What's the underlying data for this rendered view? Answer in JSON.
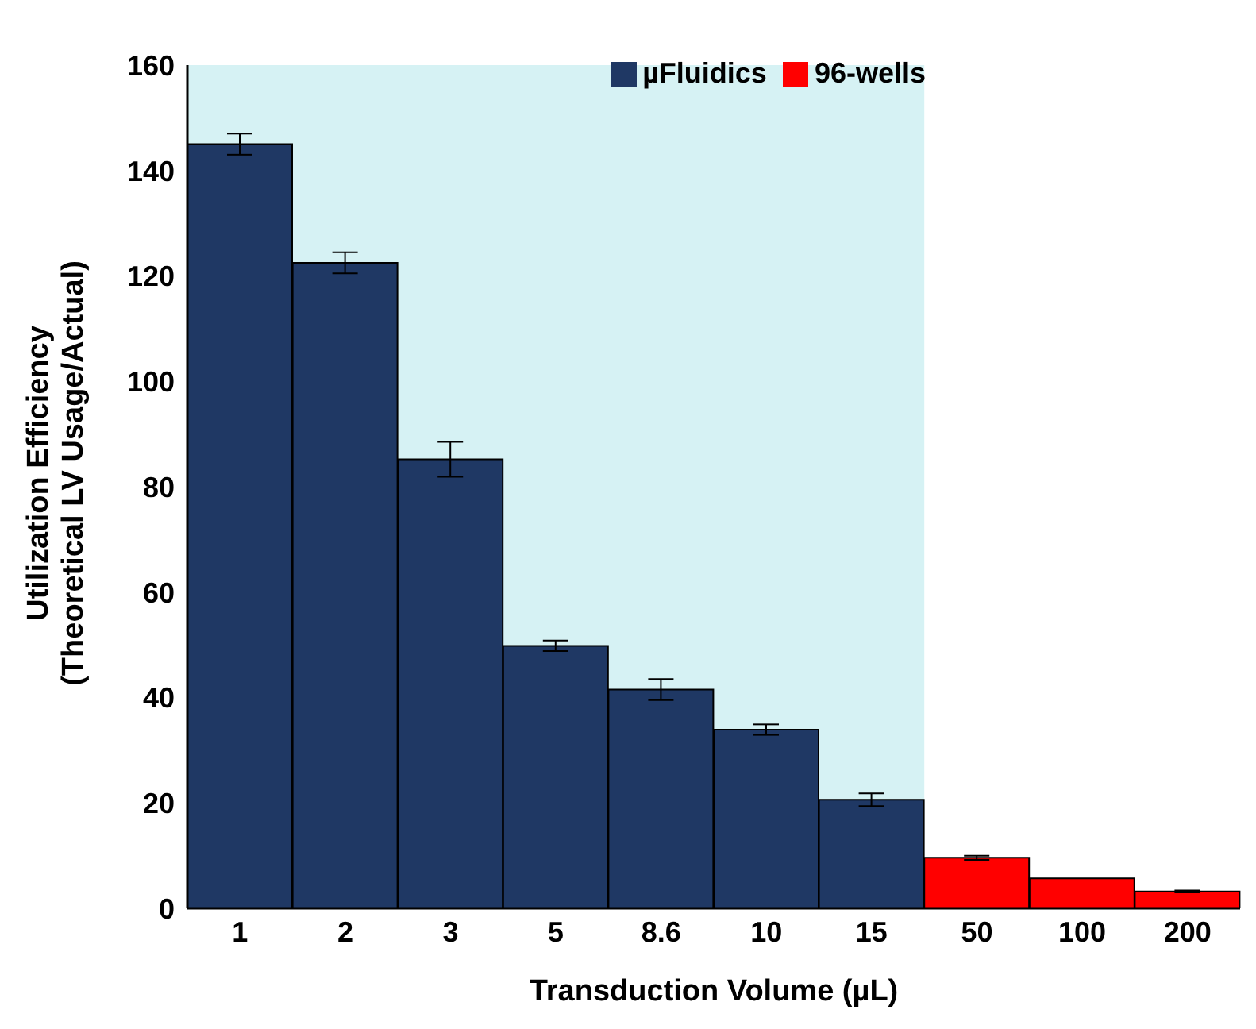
{
  "chart_data": {
    "type": "bar",
    "xlabel": "Transduction Volume (µL)",
    "ylabel": "Utilization Efficiency\n(Theoretical LV Usage/Actual)",
    "categories": [
      "1",
      "2",
      "3",
      "5",
      "8.6",
      "10",
      "15",
      "50",
      "100",
      "200"
    ],
    "series": [
      {
        "name": "µFluidics",
        "color": "#1f3864",
        "values": [
          145,
          122.5,
          85.2,
          49.8,
          41.5,
          33.9,
          20.6,
          null,
          null,
          null
        ],
        "errors": [
          2,
          2,
          3.3,
          1,
          2,
          1,
          1.2,
          null,
          null,
          null
        ]
      },
      {
        "name": "96-wells",
        "color": "#ff0000",
        "values": [
          null,
          null,
          null,
          null,
          null,
          null,
          null,
          9.6,
          5.7,
          3.2
        ],
        "errors": [
          null,
          null,
          null,
          null,
          null,
          null,
          null,
          0.4,
          null,
          0.2
        ]
      }
    ],
    "ylim": [
      0,
      160
    ],
    "yticks": [
      0,
      20,
      40,
      60,
      80,
      100,
      120,
      140,
      160
    ],
    "grid": false,
    "legend": "top right",
    "bands": [
      {
        "axis": "x",
        "from": "1",
        "to": "15",
        "color": "#d6f2f4"
      }
    ]
  }
}
